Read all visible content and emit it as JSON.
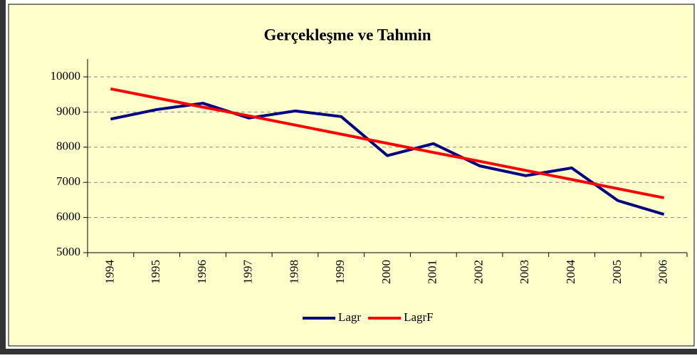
{
  "chart_data": {
    "type": "line",
    "title": "Gerçekleşme ve Tahmin",
    "categories": [
      "1994",
      "1995",
      "1996",
      "1997",
      "1998",
      "1999",
      "2000",
      "2001",
      "2002",
      "2003",
      "2004",
      "2005",
      "2006"
    ],
    "series": [
      {
        "name": "Lagr",
        "color": "#000080",
        "values": [
          8800,
          9070,
          9250,
          8830,
          9030,
          8870,
          7760,
          8100,
          7470,
          7190,
          7410,
          6480,
          6090
        ]
      },
      {
        "name": "LagrF",
        "color": "#ff0000",
        "values": [
          9660,
          9400,
          9140,
          8890,
          8630,
          8370,
          8110,
          7850,
          7600,
          7340,
          7080,
          6820,
          6560
        ]
      }
    ],
    "ylim": [
      5000,
      10000
    ],
    "yticks": [
      5000,
      6000,
      7000,
      8000,
      9000,
      10000
    ],
    "grid": true,
    "legend": "bottom"
  }
}
